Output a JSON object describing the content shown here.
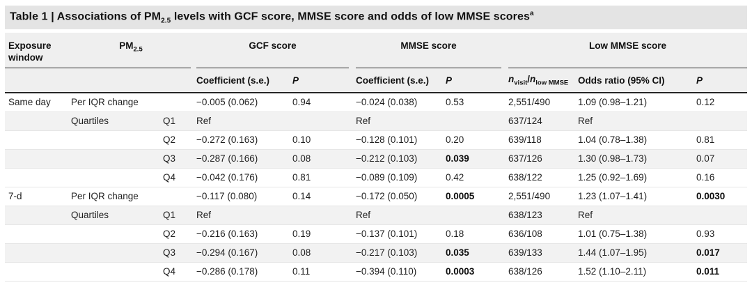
{
  "colors": {
    "title_band": "#e4e4e4",
    "header_band": "#efefef",
    "row_stripe": "#f2f2f2",
    "rule_dark": "#2b2b2b",
    "row_divider": "#e6e6e6",
    "text": "#1c1c1c"
  },
  "title": {
    "prefix": "Table 1 | ",
    "before_sub": "Associations of PM",
    "pm_sub": "2.5",
    "after_sub": " levels with GCF score, MMSE score and odds of low MMSE scores",
    "footnote_sup": "a"
  },
  "header": {
    "exposure_window": "Exposure window",
    "pm_label": "PM",
    "pm_sub": "2.5",
    "groups": {
      "gcf": "GCF score",
      "mmse": "MMSE score",
      "low_mmse": "Low MMSE score"
    },
    "sub": {
      "gcf_coef": "Coefficient (s.e.)",
      "gcf_p": "P",
      "mmse_coef": "Coefficient (s.e.)",
      "mmse_p": "P",
      "n_italic1": "n",
      "n_sub1": "visit",
      "n_slash": "/",
      "n_italic2": "n",
      "n_sub2": "low MMSE",
      "odds_ratio": "Odds ratio (95% CI)",
      "low_p": "P"
    }
  },
  "table": {
    "rows": [
      {
        "cells": [
          "Same day",
          "Per IQR change",
          "",
          "−0.005 (0.062)",
          "0.94",
          "−0.024 (0.038)",
          "0.53",
          "2,551/490",
          "1.09 (0.98–1.21)",
          "0.12"
        ],
        "bold": [],
        "striped": false
      },
      {
        "cells": [
          "",
          "Quartiles",
          "Q1",
          "Ref",
          "",
          "Ref",
          "",
          "637/124",
          "Ref",
          ""
        ],
        "bold": [],
        "striped": true
      },
      {
        "cells": [
          "",
          "",
          "Q2",
          "−0.272 (0.163)",
          "0.10",
          "−0.128 (0.101)",
          "0.20",
          "639/118",
          "1.04 (0.78–1.38)",
          "0.81"
        ],
        "bold": [],
        "striped": false
      },
      {
        "cells": [
          "",
          "",
          "Q3",
          "−0.287 (0.166)",
          "0.08",
          "−0.212 (0.103)",
          "0.039",
          "637/126",
          "1.30 (0.98–1.73)",
          "0.07"
        ],
        "bold": [
          6
        ],
        "striped": true
      },
      {
        "cells": [
          "",
          "",
          "Q4",
          "−0.042 (0.176)",
          "0.81",
          "−0.089 (0.109)",
          "0.42",
          "638/122",
          "1.25 (0.92–1.69)",
          "0.16"
        ],
        "bold": [],
        "striped": false
      },
      {
        "cells": [
          "7-d",
          "Per IQR change",
          "",
          "−0.117 (0.080)",
          "0.14",
          "−0.172 (0.050)",
          "0.0005",
          "2,551/490",
          "1.23 (1.07–1.41)",
          "0.0030"
        ],
        "bold": [
          6,
          9
        ],
        "striped": false
      },
      {
        "cells": [
          "",
          "Quartiles",
          "Q1",
          "Ref",
          "",
          "Ref",
          "",
          "638/123",
          "Ref",
          ""
        ],
        "bold": [],
        "striped": true
      },
      {
        "cells": [
          "",
          "",
          "Q2",
          "−0.216 (0.163)",
          "0.19",
          "−0.137 (0.101)",
          "0.18",
          "636/108",
          "1.01 (0.75–1.38)",
          "0.93"
        ],
        "bold": [],
        "striped": false
      },
      {
        "cells": [
          "",
          "",
          "Q3",
          "−0.294 (0.167)",
          "0.08",
          "−0.217 (0.103)",
          "0.035",
          "639/133",
          "1.44 (1.07–1.95)",
          "0.017"
        ],
        "bold": [
          6,
          9
        ],
        "striped": true
      },
      {
        "cells": [
          "",
          "",
          "Q4",
          "−0.286 (0.178)",
          "0.11",
          "−0.394 (0.110)",
          "0.0003",
          "638/126",
          "1.52 (1.10–2.11)",
          "0.011"
        ],
        "bold": [
          6,
          9
        ],
        "striped": false
      }
    ]
  }
}
